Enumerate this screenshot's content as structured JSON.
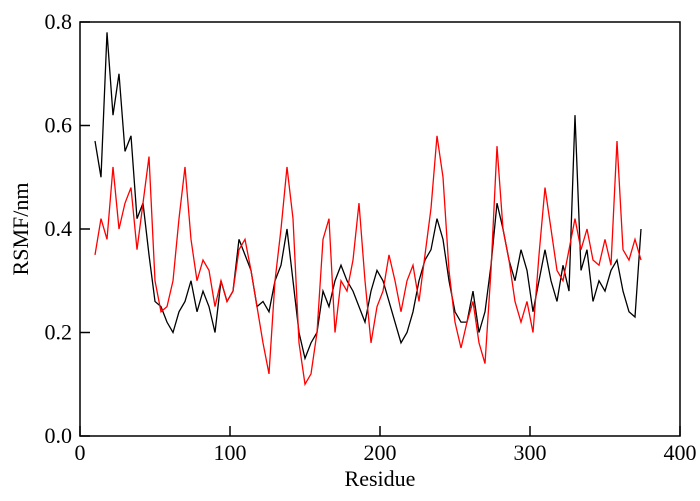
{
  "chart_data": {
    "type": "line",
    "x_label": "Residue",
    "y_label": "RSMF/nm",
    "x": [
      10,
      14,
      18,
      22,
      26,
      30,
      34,
      38,
      42,
      46,
      50,
      54,
      58,
      62,
      66,
      70,
      74,
      78,
      82,
      86,
      90,
      94,
      98,
      102,
      106,
      110,
      114,
      118,
      122,
      126,
      130,
      134,
      138,
      142,
      146,
      150,
      154,
      158,
      162,
      166,
      170,
      174,
      178,
      182,
      186,
      190,
      194,
      198,
      202,
      206,
      210,
      214,
      218,
      222,
      226,
      230,
      234,
      238,
      242,
      246,
      250,
      254,
      258,
      262,
      266,
      270,
      274,
      278,
      282,
      286,
      290,
      294,
      298,
      302,
      306,
      310,
      314,
      318,
      322,
      326,
      330,
      334,
      338,
      342,
      346,
      350,
      354,
      358,
      362,
      366,
      370,
      374
    ],
    "series": [
      {
        "color": "#000000",
        "values": [
          0.57,
          0.5,
          0.78,
          0.62,
          0.7,
          0.55,
          0.58,
          0.42,
          0.45,
          0.35,
          0.26,
          0.25,
          0.22,
          0.2,
          0.24,
          0.26,
          0.3,
          0.24,
          0.28,
          0.25,
          0.2,
          0.3,
          0.26,
          0.28,
          0.38,
          0.35,
          0.32,
          0.25,
          0.26,
          0.24,
          0.3,
          0.33,
          0.4,
          0.3,
          0.2,
          0.15,
          0.18,
          0.2,
          0.28,
          0.25,
          0.3,
          0.33,
          0.3,
          0.28,
          0.25,
          0.22,
          0.28,
          0.32,
          0.3,
          0.26,
          0.22,
          0.18,
          0.2,
          0.24,
          0.3,
          0.34,
          0.36,
          0.42,
          0.38,
          0.3,
          0.24,
          0.22,
          0.22,
          0.28,
          0.2,
          0.24,
          0.33,
          0.45,
          0.4,
          0.34,
          0.3,
          0.36,
          0.32,
          0.24,
          0.3,
          0.36,
          0.3,
          0.26,
          0.33,
          0.28,
          0.62,
          0.32,
          0.36,
          0.26,
          0.3,
          0.28,
          0.32,
          0.34,
          0.28,
          0.24,
          0.23,
          0.4
        ]
      },
      {
        "color": "#ff0000",
        "values": [
          0.35,
          0.42,
          0.38,
          0.52,
          0.4,
          0.45,
          0.48,
          0.36,
          0.45,
          0.54,
          0.3,
          0.24,
          0.25,
          0.3,
          0.42,
          0.52,
          0.38,
          0.3,
          0.34,
          0.32,
          0.25,
          0.3,
          0.26,
          0.28,
          0.36,
          0.38,
          0.32,
          0.25,
          0.18,
          0.12,
          0.3,
          0.4,
          0.52,
          0.42,
          0.18,
          0.1,
          0.12,
          0.2,
          0.38,
          0.42,
          0.2,
          0.3,
          0.28,
          0.34,
          0.45,
          0.3,
          0.18,
          0.25,
          0.28,
          0.35,
          0.3,
          0.24,
          0.3,
          0.33,
          0.26,
          0.35,
          0.44,
          0.58,
          0.5,
          0.32,
          0.22,
          0.17,
          0.22,
          0.26,
          0.18,
          0.14,
          0.32,
          0.56,
          0.4,
          0.34,
          0.26,
          0.22,
          0.26,
          0.2,
          0.35,
          0.48,
          0.4,
          0.32,
          0.3,
          0.36,
          0.42,
          0.36,
          0.4,
          0.34,
          0.33,
          0.38,
          0.33,
          0.57,
          0.36,
          0.34,
          0.38,
          0.34
        ]
      }
    ],
    "xlim": [
      0,
      400
    ],
    "xticks": [
      0,
      100,
      200,
      300,
      400
    ],
    "ylim": [
      0,
      0.8
    ],
    "yticks": [
      {
        "value": 0,
        "label": "0.0"
      },
      {
        "value": 0.2,
        "label": "0.2"
      },
      {
        "value": 0.4,
        "label": "0.4"
      },
      {
        "value": 0.6,
        "label": "0.6"
      },
      {
        "value": 0.8,
        "label": "0.8"
      }
    ],
    "grid": false
  }
}
